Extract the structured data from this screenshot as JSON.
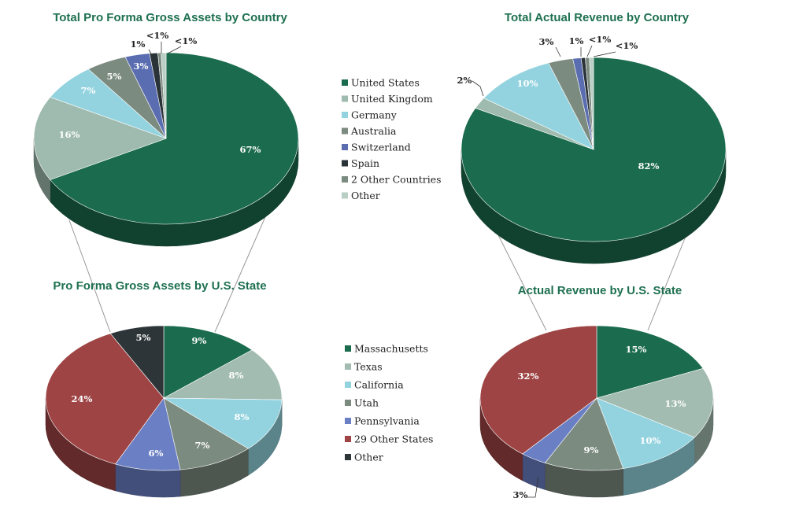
{
  "palette": {
    "country": [
      "#1b6b4e",
      "#9fbbaf",
      "#93d3df",
      "#7c8b80",
      "#5a6db0",
      "#2a3338",
      "#7c8b80",
      "#b9cfc5"
    ],
    "state": [
      "#1b6b4e",
      "#a3bcb1",
      "#93d3df",
      "#7c8b80",
      "#6a7fc4",
      "#9e4444",
      "#2e3538"
    ]
  },
  "legends": [
    {
      "id": "country",
      "labels": [
        "United States",
        "United Kingdom",
        "Germany",
        "Australia",
        "Switzerland",
        "Spain",
        "2 Other Countries",
        "Other"
      ]
    },
    {
      "id": "state",
      "labels": [
        "Massachusetts",
        "Texas",
        "California",
        "Utah",
        "Pennsylvania",
        "29 Other States",
        "Other"
      ]
    }
  ],
  "chart_data": [
    {
      "type": "pie",
      "title": "Total Pro Forma Gross Assets by Country",
      "categories": [
        "United States",
        "United Kingdom",
        "Germany",
        "Australia",
        "Switzerland",
        "Spain",
        "2 Other Countries",
        "Other"
      ],
      "values": [
        67,
        16,
        7,
        5,
        3,
        1,
        0.4,
        0.6
      ],
      "labels": [
        "67%",
        "16%",
        "7%",
        "5%",
        "3%",
        "1%",
        "<1%",
        "<1%"
      ],
      "legend": "shared, center"
    },
    {
      "type": "pie",
      "title": "Total Actual Revenue by Country",
      "categories": [
        "United States",
        "United Kingdom",
        "Germany",
        "Australia",
        "Switzerland",
        "Spain",
        "2 Other Countries",
        "Other"
      ],
      "values": [
        82,
        2,
        10,
        3,
        1,
        0.5,
        0.5,
        0.5
      ],
      "labels": [
        "82%",
        "2%",
        "10%",
        "3%",
        "1%",
        "<1%",
        "",
        "<1%"
      ],
      "legend": "shared, center"
    },
    {
      "type": "pie",
      "title": "Pro Forma Gross Assets by U.S. State",
      "categories": [
        "Massachusetts",
        "Texas",
        "California",
        "Utah",
        "Pennsylvania",
        "29 Other States",
        "Other"
      ],
      "values": [
        9,
        8,
        8,
        7,
        6,
        24,
        5
      ],
      "labels": [
        "9%",
        "8%",
        "8%",
        "7%",
        "6%",
        "24%",
        "5%"
      ],
      "legend": "shared, center"
    },
    {
      "type": "pie",
      "title": "Actual Revenue by U.S. State",
      "categories": [
        "Massachusetts",
        "Texas",
        "California",
        "Utah",
        "Pennsylvania",
        "29 Other States"
      ],
      "values": [
        15,
        13,
        10,
        9,
        3,
        32
      ],
      "labels": [
        "15%",
        "13%",
        "10%",
        "9%",
        "3%",
        "32%"
      ],
      "legend": "shared, center"
    }
  ]
}
